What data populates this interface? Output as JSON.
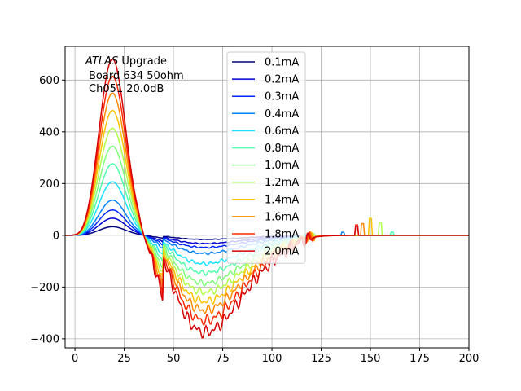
{
  "chart_data": {
    "type": "line",
    "title": "",
    "xlabel": "",
    "ylabel": "",
    "xlim": [
      -5,
      200
    ],
    "ylim": [
      -435,
      730
    ],
    "grid": true,
    "xticks": [
      0,
      25,
      50,
      75,
      100,
      125,
      150,
      175,
      200
    ],
    "yticks": [
      -400,
      -200,
      0,
      200,
      400,
      600
    ],
    "xtick_labels": [
      "0",
      "25",
      "50",
      "75",
      "100",
      "125",
      "150",
      "175",
      "200"
    ],
    "ytick_labels": [
      "−400",
      "−200",
      "0",
      "200",
      "400",
      "600"
    ],
    "annotation": {
      "line1_italic": "ATLAS",
      "line1_rest": " Upgrade",
      "line2": "Board 634 50ohm",
      "line3": "Ch051 20.0dB"
    },
    "legend_position": "upper center",
    "series": [
      {
        "name": "0.1mA",
        "color": "#00007f",
        "peak": 33,
        "trough": -16,
        "spike_x": 0,
        "spike_h": 0
      },
      {
        "name": "0.2mA",
        "color": "#0000d6",
        "peak": 66,
        "trough": -32,
        "spike_x": 0,
        "spike_h": 0
      },
      {
        "name": "0.3mA",
        "color": "#0028ff",
        "peak": 98,
        "trough": -47,
        "spike_x": 0,
        "spike_h": 0
      },
      {
        "name": "0.4mA",
        "color": "#0080ff",
        "peak": 136,
        "trough": -70,
        "spike_x": 136,
        "spike_h": 12
      },
      {
        "name": "0.6mA",
        "color": "#16e4ff",
        "peak": 207,
        "trough": -110,
        "spike_x": 0,
        "spike_h": 0
      },
      {
        "name": "0.8mA",
        "color": "#4dffaa",
        "peak": 277,
        "trough": -145,
        "spike_x": 161,
        "spike_h": 12
      },
      {
        "name": "1.0mA",
        "color": "#7dff7a",
        "peak": 345,
        "trough": -185,
        "spike_x": 0,
        "spike_h": 0
      },
      {
        "name": "1.2mA",
        "color": "#b3ff45",
        "peak": 414,
        "trough": -220,
        "spike_x": 155,
        "spike_h": 50
      },
      {
        "name": "1.4mA",
        "color": "#ffc300",
        "peak": 483,
        "trough": -255,
        "spike_x": 150,
        "spike_h": 65
      },
      {
        "name": "1.6mA",
        "color": "#ff8a00",
        "peak": 550,
        "trough": -290,
        "spike_x": 146,
        "spike_h": 45
      },
      {
        "name": "1.8mA",
        "color": "#ff2800",
        "peak": 615,
        "trough": -330,
        "spike_x": 143,
        "spike_h": 40
      },
      {
        "name": "2.0mA",
        "color": "#d60000",
        "peak": 682,
        "trough": -375,
        "spike_x": 143,
        "spike_h": 35
      }
    ]
  }
}
